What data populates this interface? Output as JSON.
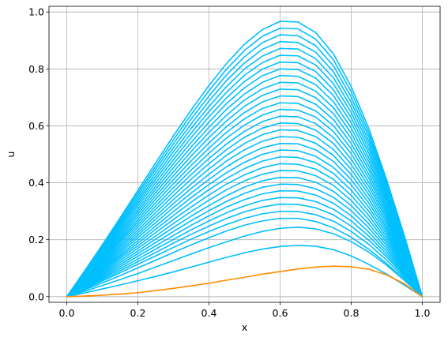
{
  "chart_data": {
    "type": "line",
    "title": "",
    "xlabel": "x",
    "ylabel": "u",
    "xlim": [
      -0.05,
      1.05
    ],
    "ylim": [
      -0.02,
      1.02
    ],
    "xticks": [
      0.0,
      0.2,
      0.4,
      0.6,
      0.8,
      1.0
    ],
    "yticks": [
      0.0,
      0.2,
      0.4,
      0.6,
      0.8,
      1.0
    ],
    "xtick_labels": [
      "0.0",
      "0.2",
      "0.4",
      "0.6",
      "0.8",
      "1.0"
    ],
    "ytick_labels": [
      "0.0",
      "0.2",
      "0.4",
      "0.6",
      "0.8",
      "1.0"
    ],
    "grid": true,
    "legend": "none",
    "colors": {
      "family": "#00bfff",
      "highlight": "#ff8c00",
      "grid": "#b0b0b0"
    },
    "x": [
      0.0,
      0.05,
      0.1,
      0.15,
      0.2,
      0.25,
      0.3,
      0.35,
      0.4,
      0.45,
      0.5,
      0.55,
      0.6,
      0.65,
      0.7,
      0.75,
      0.8,
      0.85,
      0.9,
      0.95,
      1.0
    ],
    "series": [
      {
        "color": "#ff8c00",
        "values": [
          0.0,
          0.002,
          0.005,
          0.009,
          0.014,
          0.021,
          0.029,
          0.038,
          0.047,
          0.058,
          0.068,
          0.079,
          0.088,
          0.097,
          0.104,
          0.107,
          0.105,
          0.096,
          0.076,
          0.045,
          0.0
        ]
      },
      {
        "color": "#00bfff",
        "values": [
          0.0,
          0.013,
          0.027,
          0.041,
          0.056,
          0.071,
          0.087,
          0.104,
          0.121,
          0.138,
          0.154,
          0.167,
          0.176,
          0.18,
          0.177,
          0.165,
          0.143,
          0.113,
          0.079,
          0.04,
          0.0
        ]
      },
      {
        "color": "#00bfff",
        "values": [
          0.0,
          0.019,
          0.039,
          0.06,
          0.081,
          0.104,
          0.127,
          0.15,
          0.172,
          0.193,
          0.213,
          0.229,
          0.24,
          0.244,
          0.238,
          0.221,
          0.193,
          0.156,
          0.11,
          0.057,
          0.0
        ]
      },
      {
        "color": "#00bfff",
        "values": [
          0.0,
          0.024,
          0.048,
          0.074,
          0.101,
          0.128,
          0.155,
          0.182,
          0.207,
          0.231,
          0.251,
          0.266,
          0.275,
          0.275,
          0.264,
          0.242,
          0.209,
          0.166,
          0.116,
          0.06,
          0.0
        ]
      },
      {
        "color": "#00bfff",
        "values": [
          0.0,
          0.027,
          0.055,
          0.084,
          0.114,
          0.143,
          0.173,
          0.202,
          0.229,
          0.254,
          0.275,
          0.291,
          0.3,
          0.299,
          0.288,
          0.265,
          0.229,
          0.183,
          0.128,
          0.066,
          0.0
        ]
      },
      {
        "color": "#00bfff",
        "values": [
          0.0,
          0.029,
          0.06,
          0.091,
          0.123,
          0.155,
          0.188,
          0.219,
          0.248,
          0.275,
          0.298,
          0.315,
          0.325,
          0.324,
          0.312,
          0.287,
          0.248,
          0.198,
          0.139,
          0.072,
          0.0
        ]
      },
      {
        "color": "#00bfff",
        "values": [
          0.0,
          0.032,
          0.065,
          0.098,
          0.132,
          0.167,
          0.201,
          0.235,
          0.266,
          0.295,
          0.319,
          0.338,
          0.348,
          0.347,
          0.334,
          0.307,
          0.266,
          0.212,
          0.148,
          0.077,
          0.0
        ]
      },
      {
        "color": "#00bfff",
        "values": [
          0.0,
          0.034,
          0.069,
          0.105,
          0.142,
          0.178,
          0.215,
          0.251,
          0.284,
          0.315,
          0.341,
          0.361,
          0.372,
          0.371,
          0.357,
          0.328,
          0.284,
          0.226,
          0.158,
          0.082,
          0.0
        ]
      },
      {
        "color": "#00bfff",
        "values": [
          0.0,
          0.036,
          0.074,
          0.112,
          0.151,
          0.19,
          0.229,
          0.267,
          0.302,
          0.335,
          0.363,
          0.384,
          0.395,
          0.394,
          0.379,
          0.349,
          0.302,
          0.241,
          0.168,
          0.087,
          0.0
        ]
      },
      {
        "color": "#00bfff",
        "values": [
          0.0,
          0.038,
          0.078,
          0.119,
          0.16,
          0.202,
          0.243,
          0.283,
          0.32,
          0.355,
          0.385,
          0.407,
          0.419,
          0.418,
          0.402,
          0.37,
          0.32,
          0.255,
          0.178,
          0.092,
          0.0
        ]
      },
      {
        "color": "#00bfff",
        "values": [
          0.0,
          0.041,
          0.083,
          0.126,
          0.17,
          0.213,
          0.257,
          0.299,
          0.339,
          0.376,
          0.407,
          0.43,
          0.443,
          0.442,
          0.425,
          0.391,
          0.338,
          0.27,
          0.188,
          0.098,
          0.0
        ]
      },
      {
        "color": "#00bfff",
        "values": [
          0.0,
          0.043,
          0.087,
          0.133,
          0.179,
          0.225,
          0.271,
          0.315,
          0.357,
          0.396,
          0.428,
          0.453,
          0.467,
          0.465,
          0.448,
          0.412,
          0.356,
          0.284,
          0.198,
          0.103,
          0.0
        ]
      },
      {
        "color": "#00bfff",
        "values": [
          0.0,
          0.045,
          0.092,
          0.14,
          0.188,
          0.237,
          0.285,
          0.332,
          0.376,
          0.416,
          0.45,
          0.476,
          0.491,
          0.489,
          0.471,
          0.433,
          0.374,
          0.299,
          0.208,
          0.108,
          0.0
        ]
      },
      {
        "color": "#00bfff",
        "values": [
          0.0,
          0.047,
          0.096,
          0.146,
          0.197,
          0.248,
          0.299,
          0.348,
          0.394,
          0.436,
          0.472,
          0.5,
          0.515,
          0.513,
          0.493,
          0.454,
          0.393,
          0.313,
          0.218,
          0.113,
          0.0
        ]
      },
      {
        "color": "#00bfff",
        "values": [
          0.0,
          0.05,
          0.101,
          0.153,
          0.207,
          0.26,
          0.313,
          0.364,
          0.412,
          0.457,
          0.494,
          0.523,
          0.538,
          0.537,
          0.516,
          0.475,
          0.411,
          0.328,
          0.228,
          0.118,
          0.0
        ]
      },
      {
        "color": "#00bfff",
        "values": [
          0.0,
          0.052,
          0.105,
          0.16,
          0.216,
          0.272,
          0.327,
          0.38,
          0.43,
          0.477,
          0.516,
          0.546,
          0.562,
          0.56,
          0.539,
          0.496,
          0.429,
          0.342,
          0.238,
          0.124,
          0.0
        ]
      },
      {
        "color": "#00bfff",
        "values": [
          0.0,
          0.054,
          0.11,
          0.167,
          0.225,
          0.283,
          0.341,
          0.396,
          0.449,
          0.497,
          0.538,
          0.569,
          0.586,
          0.584,
          0.562,
          0.517,
          0.447,
          0.357,
          0.248,
          0.129,
          0.0
        ]
      },
      {
        "color": "#00bfff",
        "values": [
          0.0,
          0.056,
          0.114,
          0.174,
          0.234,
          0.295,
          0.355,
          0.413,
          0.467,
          0.517,
          0.56,
          0.592,
          0.61,
          0.608,
          0.585,
          0.538,
          0.465,
          0.371,
          0.259,
          0.134,
          0.0
        ]
      },
      {
        "color": "#00bfff",
        "values": [
          0.0,
          0.058,
          0.119,
          0.181,
          0.244,
          0.307,
          0.369,
          0.429,
          0.485,
          0.537,
          0.581,
          0.615,
          0.634,
          0.632,
          0.608,
          0.559,
          0.483,
          0.386,
          0.269,
          0.139,
          0.0
        ]
      },
      {
        "color": "#00bfff",
        "values": [
          0.0,
          0.061,
          0.123,
          0.188,
          0.253,
          0.318,
          0.383,
          0.445,
          0.504,
          0.558,
          0.603,
          0.638,
          0.658,
          0.655,
          0.631,
          0.58,
          0.502,
          0.4,
          0.279,
          0.144,
          0.0
        ]
      },
      {
        "color": "#00bfff",
        "values": [
          0.0,
          0.063,
          0.128,
          0.195,
          0.262,
          0.33,
          0.397,
          0.461,
          0.522,
          0.578,
          0.625,
          0.661,
          0.681,
          0.679,
          0.653,
          0.601,
          0.52,
          0.415,
          0.289,
          0.15,
          0.0
        ]
      },
      {
        "color": "#00bfff",
        "values": [
          0.0,
          0.065,
          0.132,
          0.201,
          0.271,
          0.342,
          0.411,
          0.477,
          0.54,
          0.598,
          0.647,
          0.684,
          0.705,
          0.703,
          0.676,
          0.622,
          0.538,
          0.429,
          0.299,
          0.155,
          0.0
        ]
      },
      {
        "color": "#00bfff",
        "values": [
          0.0,
          0.067,
          0.137,
          0.208,
          0.281,
          0.353,
          0.425,
          0.494,
          0.559,
          0.618,
          0.669,
          0.707,
          0.729,
          0.727,
          0.699,
          0.643,
          0.556,
          0.444,
          0.309,
          0.16,
          0.0
        ]
      },
      {
        "color": "#00bfff",
        "values": [
          0.0,
          0.07,
          0.141,
          0.215,
          0.29,
          0.365,
          0.439,
          0.51,
          0.577,
          0.638,
          0.691,
          0.73,
          0.753,
          0.751,
          0.722,
          0.664,
          0.574,
          0.458,
          0.319,
          0.165,
          0.0
        ]
      },
      {
        "color": "#00bfff",
        "values": [
          0.0,
          0.072,
          0.146,
          0.222,
          0.299,
          0.377,
          0.453,
          0.526,
          0.595,
          0.659,
          0.712,
          0.753,
          0.777,
          0.774,
          0.745,
          0.685,
          0.592,
          0.473,
          0.329,
          0.17,
          0.0
        ]
      },
      {
        "color": "#00bfff",
        "values": [
          0.0,
          0.074,
          0.15,
          0.229,
          0.308,
          0.388,
          0.467,
          0.542,
          0.613,
          0.679,
          0.734,
          0.776,
          0.8,
          0.798,
          0.768,
          0.706,
          0.611,
          0.487,
          0.339,
          0.176,
          0.0
        ]
      },
      {
        "color": "#00bfff",
        "values": [
          0.0,
          0.076,
          0.155,
          0.236,
          0.318,
          0.4,
          0.481,
          0.559,
          0.632,
          0.699,
          0.756,
          0.799,
          0.824,
          0.822,
          0.791,
          0.727,
          0.629,
          0.502,
          0.349,
          0.181,
          0.0
        ]
      },
      {
        "color": "#00bfff",
        "values": [
          0.0,
          0.079,
          0.159,
          0.243,
          0.327,
          0.412,
          0.495,
          0.575,
          0.65,
          0.719,
          0.778,
          0.822,
          0.848,
          0.846,
          0.814,
          0.748,
          0.647,
          0.516,
          0.359,
          0.186,
          0.0
        ]
      },
      {
        "color": "#00bfff",
        "values": [
          0.0,
          0.081,
          0.164,
          0.25,
          0.336,
          0.423,
          0.509,
          0.591,
          0.668,
          0.739,
          0.8,
          0.845,
          0.872,
          0.87,
          0.836,
          0.769,
          0.665,
          0.531,
          0.369,
          0.191,
          0.0
        ]
      },
      {
        "color": "#00bfff",
        "values": [
          0.0,
          0.083,
          0.168,
          0.256,
          0.345,
          0.435,
          0.523,
          0.607,
          0.687,
          0.76,
          0.821,
          0.869,
          0.896,
          0.893,
          0.859,
          0.79,
          0.683,
          0.545,
          0.379,
          0.196,
          0.0
        ]
      },
      {
        "color": "#00bfff",
        "values": [
          0.0,
          0.085,
          0.173,
          0.263,
          0.355,
          0.447,
          0.537,
          0.624,
          0.705,
          0.78,
          0.843,
          0.892,
          0.92,
          0.917,
          0.882,
          0.811,
          0.701,
          0.56,
          0.389,
          0.201,
          0.0
        ]
      },
      {
        "color": "#00bfff",
        "values": [
          0.0,
          0.087,
          0.177,
          0.27,
          0.364,
          0.458,
          0.551,
          0.64,
          0.724,
          0.8,
          0.865,
          0.915,
          0.943,
          0.941,
          0.905,
          0.832,
          0.72,
          0.574,
          0.399,
          0.207,
          0.0
        ]
      },
      {
        "color": "#00bfff",
        "values": [
          0.0,
          0.09,
          0.182,
          0.277,
          0.373,
          0.47,
          0.565,
          0.656,
          0.742,
          0.82,
          0.887,
          0.938,
          0.967,
          0.965,
          0.928,
          0.853,
          0.738,
          0.589,
          0.409,
          0.212,
          0.0
        ]
      }
    ]
  }
}
